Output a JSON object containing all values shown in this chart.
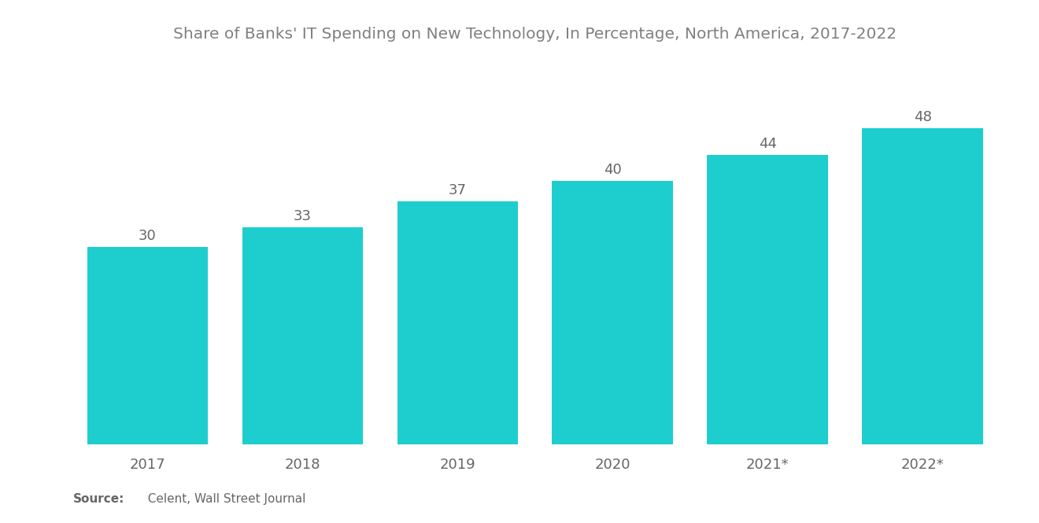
{
  "title": "Share of Banks' IT Spending on New Technology, In Percentage, North America, 2017-2022",
  "categories": [
    "2017",
    "2018",
    "2019",
    "2020",
    "2021*",
    "2022*"
  ],
  "values": [
    30,
    33,
    37,
    40,
    44,
    48
  ],
  "bar_color": "#1ECECE",
  "background_color": "#ffffff",
  "title_color": "#808080",
  "label_color": "#666666",
  "source_text": "Source:   Celent, Wall Street Journal",
  "source_bold": "Source:",
  "source_color": "#666666",
  "title_fontsize": 14.5,
  "label_fontsize": 13,
  "value_fontsize": 13,
  "source_fontsize": 11,
  "ylim": [
    0,
    58
  ],
  "bar_width": 0.78
}
